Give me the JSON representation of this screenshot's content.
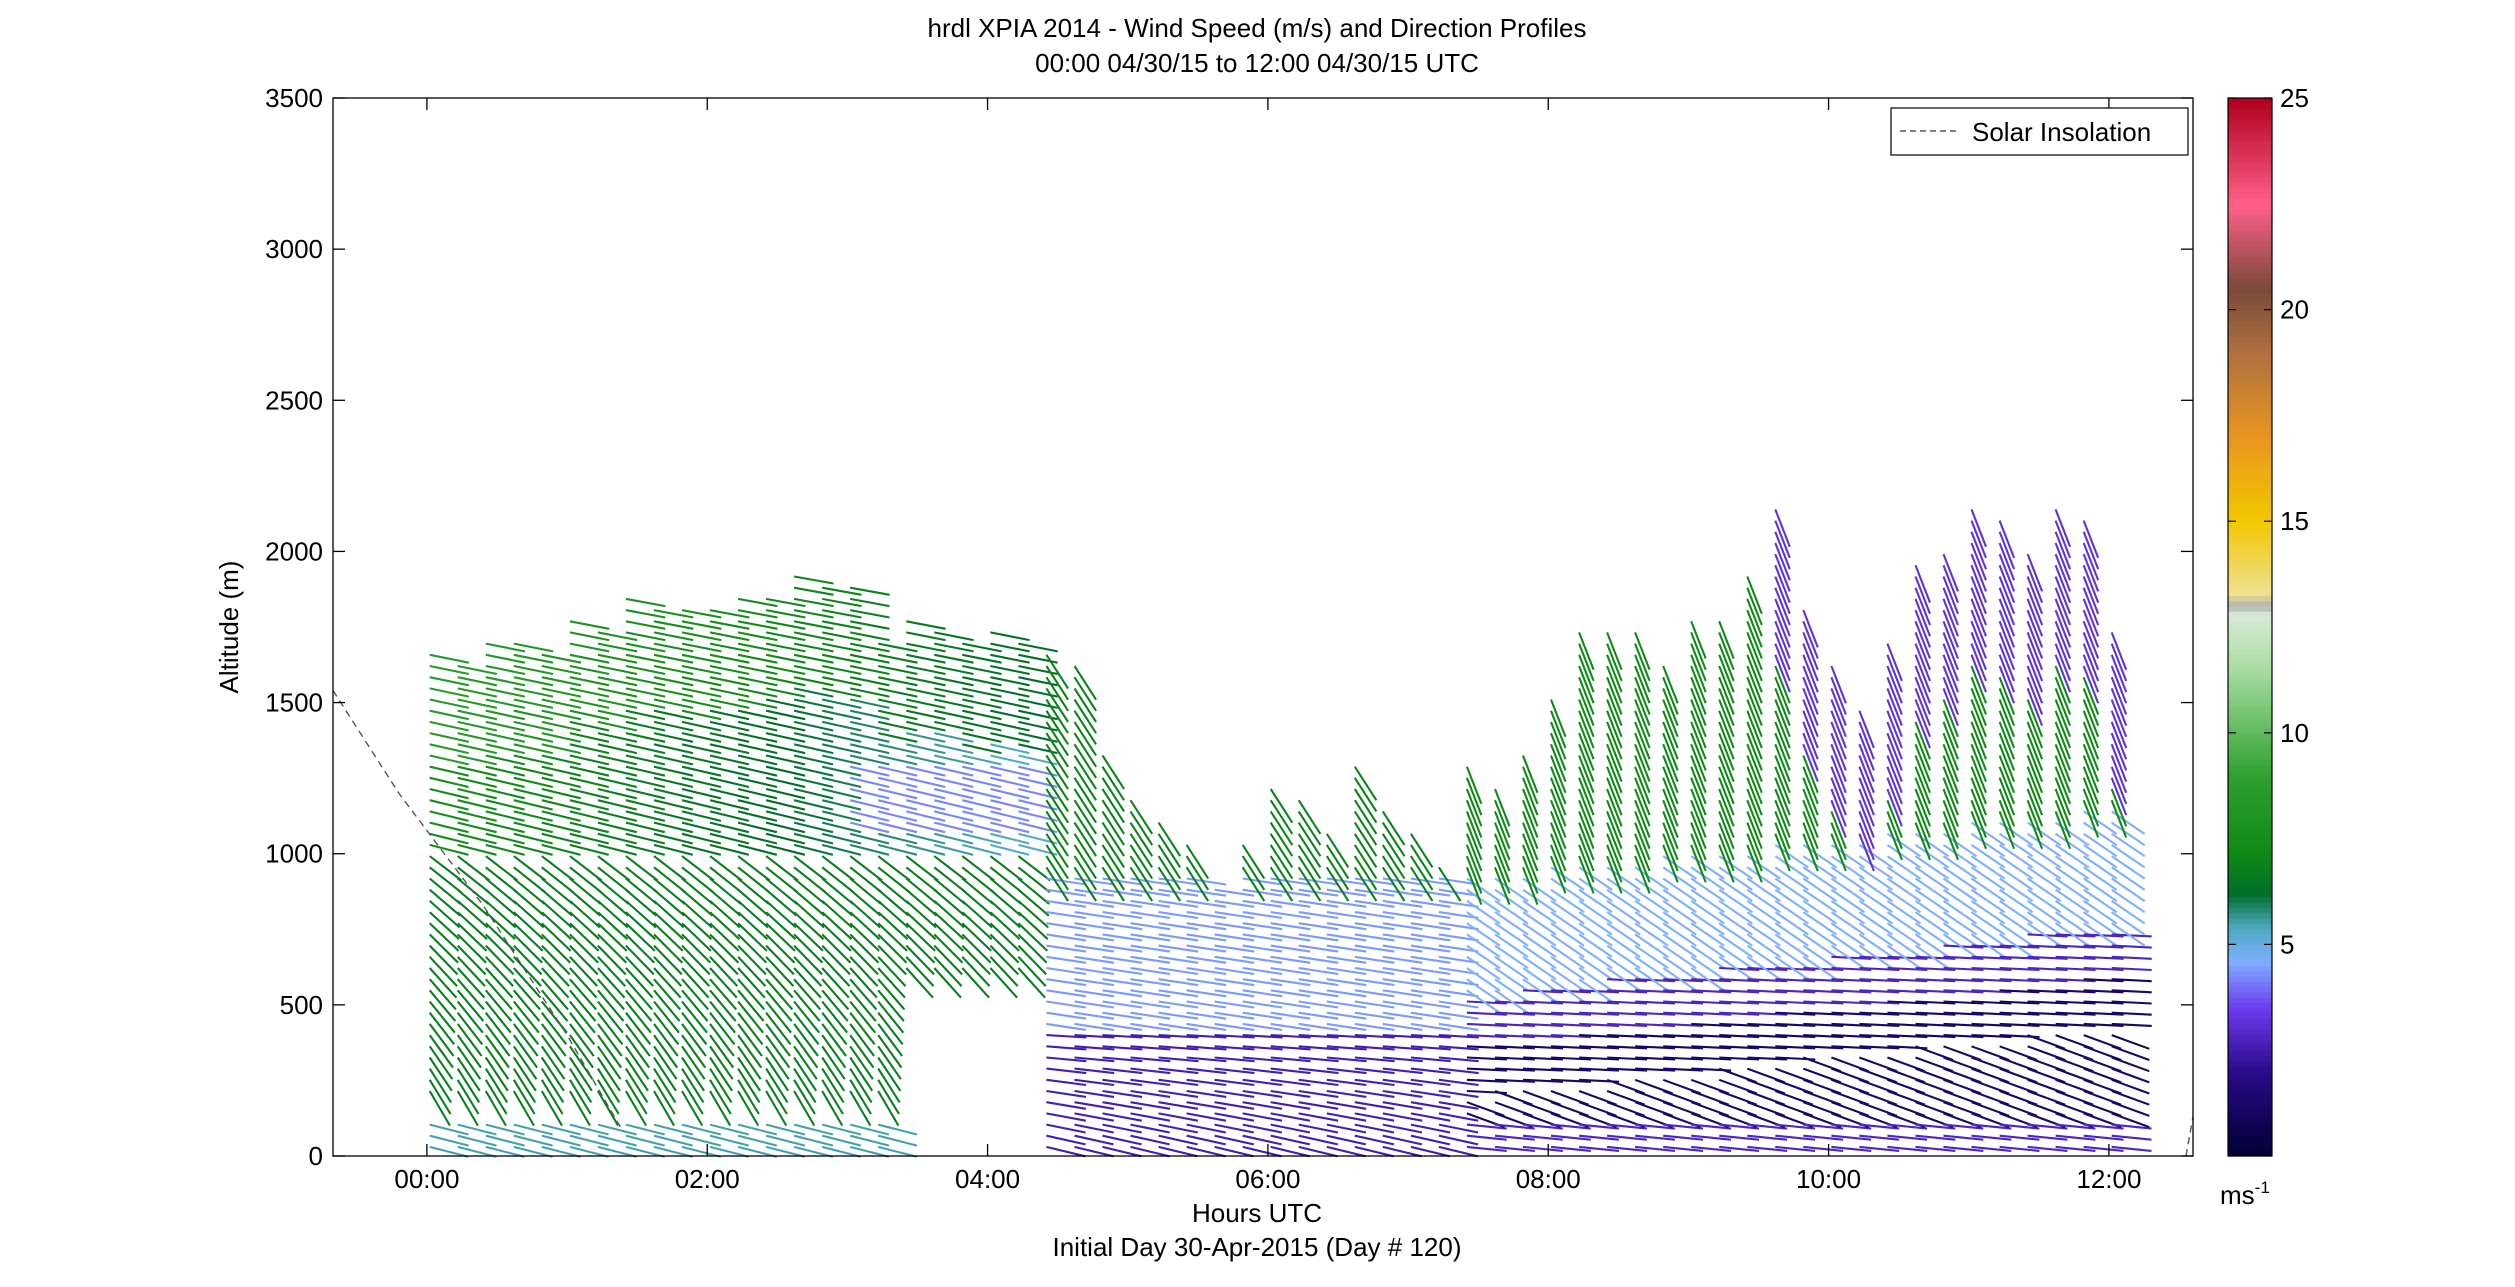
{
  "chart_data": {
    "type": "quiver",
    "title": "hrdl XPIA 2014 - Wind Speed (m/s) and Direction Profiles",
    "subtitle": "00:00 04/30/15 to 12:00 04/30/15  UTC",
    "xlabel": "Hours UTC",
    "xlabel2": "Initial Day 30-Apr-2015 (Day # 120)",
    "ylabel": "Altitude (m)",
    "x_ticks": [
      {
        "v": 0,
        "label": "00:00"
      },
      {
        "v": 2,
        "label": "02:00"
      },
      {
        "v": 4,
        "label": "04:00"
      },
      {
        "v": 6,
        "label": "06:00"
      },
      {
        "v": 8,
        "label": "08:00"
      },
      {
        "v": 10,
        "label": "10:00"
      },
      {
        "v": 12,
        "label": "12:00"
      }
    ],
    "y_ticks": [
      {
        "v": 0,
        "label": "0"
      },
      {
        "v": 500,
        "label": "500"
      },
      {
        "v": 1000,
        "label": "1000"
      },
      {
        "v": 1500,
        "label": "1500"
      },
      {
        "v": 2000,
        "label": "2000"
      },
      {
        "v": 2500,
        "label": "2500"
      },
      {
        "v": 3000,
        "label": "3000"
      },
      {
        "v": 3500,
        "label": "3500"
      }
    ],
    "xlim": [
      -0.67,
      12.6
    ],
    "ylim": [
      0,
      3500
    ],
    "legend": {
      "label": "Solar Insolation",
      "position": "top-right"
    },
    "solar_insolation": {
      "x": [
        -0.67,
        -0.2,
        0.4,
        1.0,
        1.4
      ],
      "y": [
        1540,
        1200,
        830,
        400,
        80
      ],
      "x2": [
        12.55,
        12.6
      ],
      "y2": [
        0,
        130
      ]
    },
    "colorbar": {
      "label": "ms",
      "label_exp": "-1",
      "min": 0,
      "max": 25,
      "ticks": [
        {
          "v": 5,
          "label": "5"
        },
        {
          "v": 10,
          "label": "10"
        },
        {
          "v": 15,
          "label": "15"
        },
        {
          "v": 20,
          "label": "20"
        },
        {
          "v": 25,
          "label": "25"
        }
      ],
      "stops": [
        {
          "v": 0,
          "color": "#000033"
        },
        {
          "v": 2,
          "color": "#2a0a8a"
        },
        {
          "v": 3.5,
          "color": "#6b3cf0"
        },
        {
          "v": 4.6,
          "color": "#7fb0ff"
        },
        {
          "v": 5.4,
          "color": "#4fa8c0"
        },
        {
          "v": 6.2,
          "color": "#006e2a"
        },
        {
          "v": 7.2,
          "color": "#108a16"
        },
        {
          "v": 9,
          "color": "#30a030"
        },
        {
          "v": 11.5,
          "color": "#a8dca0"
        },
        {
          "v": 12.8,
          "color": "#d8ead8"
        },
        {
          "v": 13,
          "color": "#b0b0b0"
        },
        {
          "v": 13.3,
          "color": "#f0e090"
        },
        {
          "v": 15,
          "color": "#f2c800"
        },
        {
          "v": 17,
          "color": "#e89520"
        },
        {
          "v": 19,
          "color": "#b07040"
        },
        {
          "v": 20.5,
          "color": "#7a4a3a"
        },
        {
          "v": 22.5,
          "color": "#ff6088"
        },
        {
          "v": 25,
          "color": "#b00020"
        }
      ]
    },
    "profile_times": [
      0.02,
      0.22,
      0.42,
      0.62,
      0.82,
      1.02,
      1.22,
      1.42,
      1.62,
      1.82,
      2.02,
      2.22,
      2.42,
      2.62,
      2.82,
      3.02,
      3.22,
      3.42,
      3.62,
      3.82,
      4.02,
      4.22,
      4.42,
      4.62,
      4.82,
      5.02,
      5.22,
      5.42,
      5.62,
      5.82,
      6.02,
      6.22,
      6.42,
      6.62,
      6.82,
      7.02,
      7.22,
      7.42,
      7.62,
      7.82,
      8.02,
      8.22,
      8.42,
      8.62,
      8.82,
      9.02,
      9.22,
      9.42,
      9.62,
      9.82,
      10.02,
      10.22,
      10.42,
      10.62,
      10.82,
      11.02,
      11.22,
      11.42,
      11.62,
      11.82,
      12.02
    ],
    "profile_tops": [
      1660,
      1640,
      1710,
      1700,
      1690,
      1790,
      1750,
      1850,
      1830,
      1820,
      1830,
      1850,
      1860,
      1930,
      1890,
      1880,
      1720,
      1770,
      1760,
      1700,
      1740,
      1700,
      1670,
      1640,
      1340,
      1210,
      1130,
      1030,
      910,
      1060,
      1240,
      1180,
      1070,
      1320,
      1150,
      1090,
      990,
      1300,
      1250,
      1340,
      1520,
      1740,
      1750,
      1760,
      1640,
      1790,
      1790,
      1920,
      2140,
      1830,
      1640,
      1490,
      1710,
      1960,
      2010,
      2150,
      2120,
      2020,
      2150,
      2120,
      1740
    ]
  }
}
